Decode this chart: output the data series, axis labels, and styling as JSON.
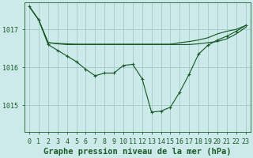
{
  "background_color": "#cdeaea",
  "plot_bg_color": "#cdeaea",
  "grid_color": "#aacece",
  "line_color": "#1a5c28",
  "xlabel": "Graphe pression niveau de la mer (hPa)",
  "xlabel_fontsize": 7.5,
  "tick_fontsize": 6,
  "ylim": [
    1014.3,
    1017.7
  ],
  "yticks": [
    1015,
    1016,
    1017
  ],
  "xlim": [
    -0.5,
    23.5
  ],
  "xticks": [
    0,
    1,
    2,
    3,
    4,
    5,
    6,
    7,
    8,
    9,
    10,
    11,
    12,
    13,
    14,
    15,
    16,
    17,
    18,
    19,
    20,
    21,
    22,
    23
  ],
  "series1": [
    1017.6,
    1017.25,
    1016.65,
    1016.62,
    1016.6,
    1016.6,
    1016.6,
    1016.6,
    1016.6,
    1016.6,
    1016.6,
    1016.6,
    1016.6,
    1016.6,
    1016.6,
    1016.6,
    1016.6,
    1016.6,
    1016.62,
    1016.65,
    1016.68,
    1016.75,
    1016.88,
    1017.05
  ],
  "series2": [
    1017.6,
    1017.25,
    1016.65,
    1016.63,
    1016.62,
    1016.61,
    1016.61,
    1016.61,
    1016.61,
    1016.61,
    1016.61,
    1016.61,
    1016.61,
    1016.61,
    1016.61,
    1016.61,
    1016.65,
    1016.68,
    1016.72,
    1016.78,
    1016.88,
    1016.95,
    1017.0,
    1017.1
  ],
  "series3_x": [
    0,
    1,
    2,
    3,
    4,
    5,
    6,
    7,
    8,
    9,
    10,
    11,
    12,
    13,
    14,
    15,
    16,
    17,
    18,
    19,
    20,
    21,
    22,
    23
  ],
  "series3": [
    1017.6,
    1017.25,
    1016.6,
    1016.45,
    1016.3,
    1016.15,
    1015.95,
    1015.78,
    1015.85,
    1015.85,
    1016.05,
    1016.08,
    1015.7,
    1014.82,
    1014.85,
    1014.95,
    1015.35,
    1015.82,
    1016.35,
    1016.58,
    1016.72,
    1016.82,
    1016.95,
    1017.1
  ]
}
